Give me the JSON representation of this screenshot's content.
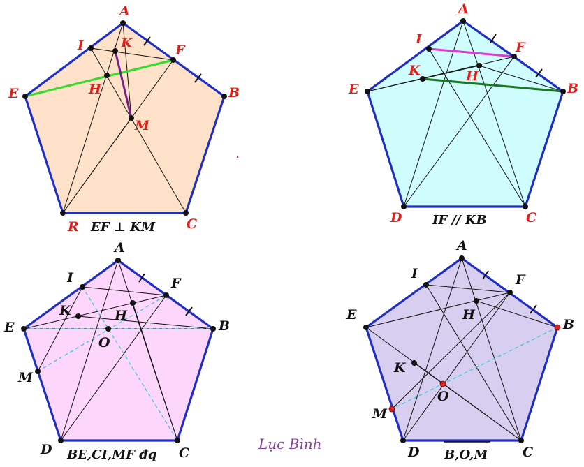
{
  "panels": [
    {
      "fill": "#fde2c9",
      "caption": "EF ⊥ KM",
      "labels": {
        "A": "A",
        "B": "B",
        "C": "C",
        "E": "E",
        "F": "F",
        "I": "I",
        "K": "K",
        "H": "H",
        "M": "M",
        "R": "R"
      },
      "highlights": [
        {
          "segment": "EF",
          "color": "#33dd2a"
        },
        {
          "segment": "KM",
          "color": "#7a1f86"
        }
      ]
    },
    {
      "fill": "#cffcfc",
      "caption": "IF // KB",
      "labels": {
        "A": "A",
        "B": "B",
        "C": "C",
        "D": "D",
        "E": "E",
        "F": "F",
        "I": "I",
        "K": "K",
        "H": "H"
      },
      "highlights": [
        {
          "segment": "IF",
          "color": "#e03ad0"
        },
        {
          "segment": "KB",
          "color": "#1a7a24"
        }
      ]
    },
    {
      "fill": "#fcd6fb",
      "caption": "BE,CI,MF đq",
      "labels": {
        "A": "A",
        "B": "B",
        "C": "C",
        "D": "D",
        "E": "E",
        "F": "F",
        "I": "I",
        "K": "K",
        "H": "H",
        "O": "O",
        "M": "M"
      },
      "highlights": []
    },
    {
      "fill": "#d8cff0",
      "caption": "B,O,M",
      "labels": {
        "A": "A",
        "B": "B",
        "C": "C",
        "D": "D",
        "E": "E",
        "F": "F",
        "I": "I",
        "K": "K",
        "H": "H",
        "O": "O",
        "M": "M"
      },
      "highlights": []
    }
  ],
  "signature": "Lục Bình",
  "stray_mark": "."
}
